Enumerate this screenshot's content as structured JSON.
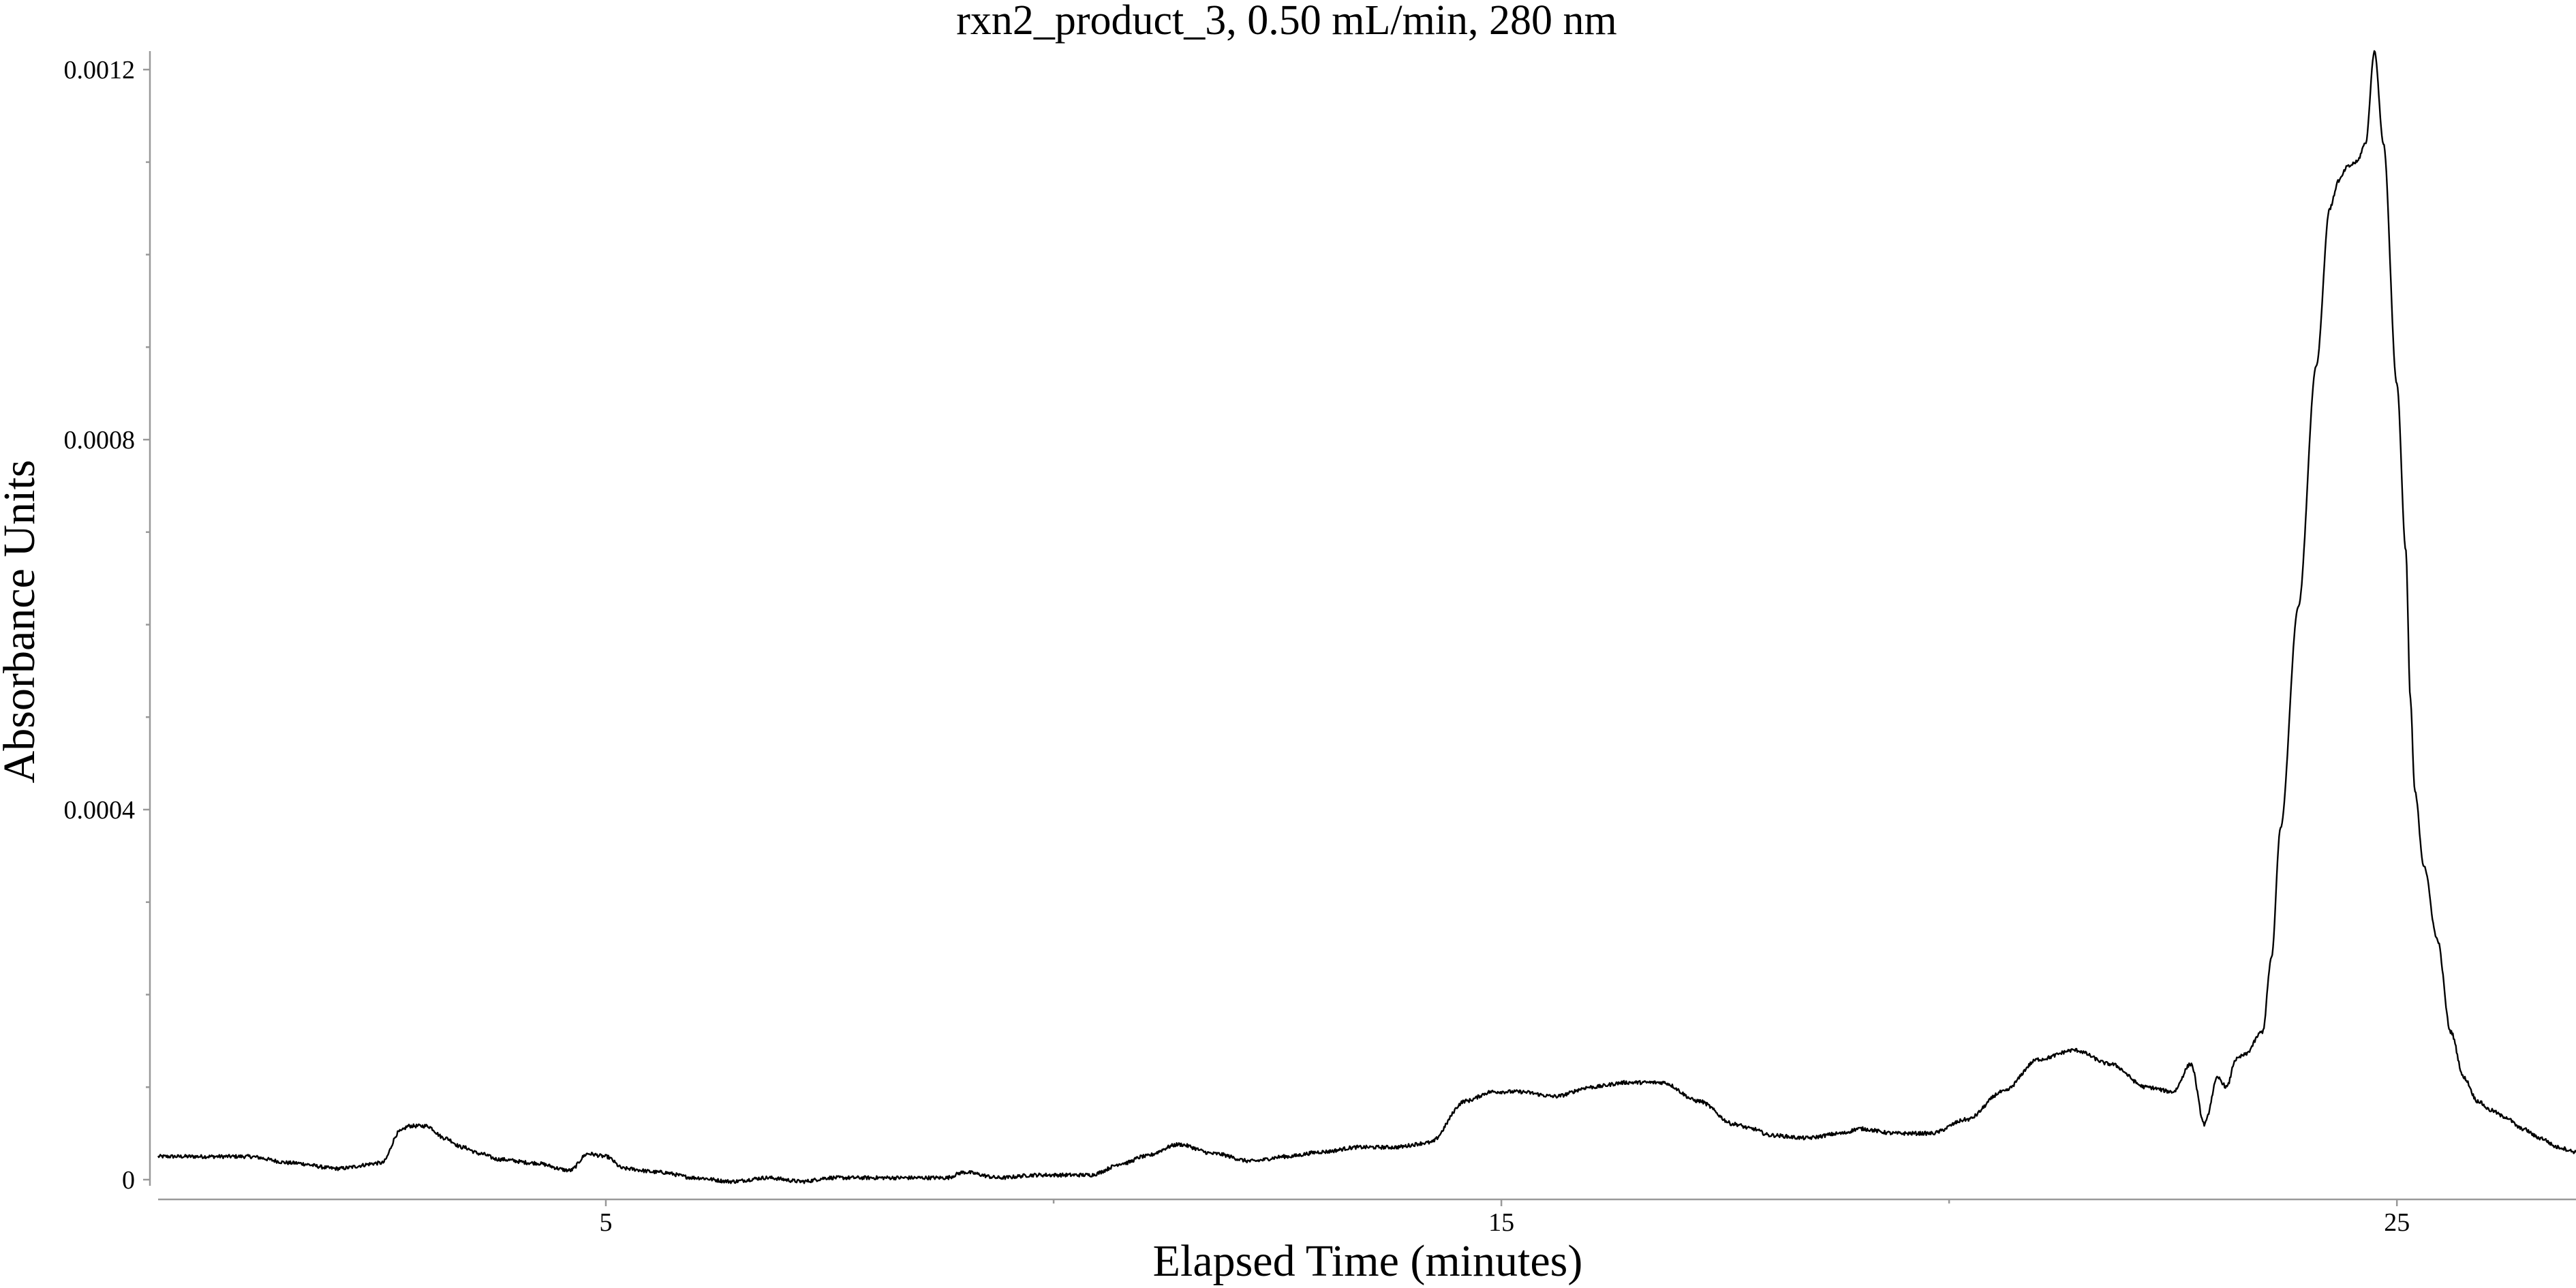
{
  "chart_data": {
    "type": "line",
    "title": "rxn2_product_3, 0.50 mL/min, 280 nm",
    "xlabel": "Elapsed Time (minutes)",
    "ylabel": "Absorbance Units",
    "xlim": [
      0,
      27
    ],
    "ylim": [
      -2e-05,
      0.00122
    ],
    "x_ticks": [
      5,
      15,
      25
    ],
    "x_tick_labels": [
      "5",
      "15",
      "25"
    ],
    "x_minor_ticks": [
      10,
      20
    ],
    "y_ticks": [
      0,
      0.0004,
      0.0008,
      0.0012
    ],
    "y_tick_labels": [
      "0",
      "0.0004",
      "0.0008",
      "0.0012"
    ],
    "grid": false,
    "legend": "none",
    "series": [
      {
        "color": "#000000",
        "x": [
          0.0,
          1.0,
          1.5,
          2.0,
          2.5,
          2.7,
          2.8,
          3.0,
          3.2,
          3.4,
          3.6,
          3.8,
          4.2,
          4.6,
          4.8,
          5.0,
          5.2,
          5.6,
          6.0,
          6.4,
          6.8,
          7.2,
          7.5,
          7.8,
          8.0,
          8.4,
          8.8,
          9.0,
          9.4,
          9.8,
          10.4,
          10.8,
          11.0,
          11.4,
          11.8,
          12.2,
          12.6,
          13.0,
          13.4,
          13.8,
          14.2,
          14.6,
          14.9,
          15.2,
          15.6,
          16.0,
          16.4,
          16.8,
          17.2,
          17.6,
          17.8,
          18.0,
          18.4,
          18.8,
          19.0,
          19.4,
          19.8,
          20.2,
          20.6,
          21.0,
          21.4,
          21.8,
          22.2,
          22.5,
          22.7,
          22.85,
          23.0,
          23.1,
          23.2,
          23.3,
          23.5,
          23.6,
          23.7,
          23.9,
          24.1,
          24.25,
          24.35,
          24.45,
          24.55,
          24.65,
          24.75,
          24.85,
          25.0,
          25.1,
          25.15,
          25.2,
          25.3,
          25.45,
          25.6,
          25.75,
          25.9,
          26.05,
          26.2,
          26.4,
          26.6,
          26.8,
          27.0
        ],
        "y": [
          2.5e-05,
          2.5e-05,
          1.8e-05,
          1.2e-05,
          1.8e-05,
          5.2e-05,
          5.8e-05,
          5.8e-05,
          4.5e-05,
          3.5e-05,
          2.8e-05,
          2.2e-05,
          1.8e-05,
          1e-05,
          2.8e-05,
          2.5e-05,
          1.2e-05,
          8e-06,
          2e-06,
          -2e-06,
          2e-06,
          -2e-06,
          2e-06,
          2e-06,
          2e-06,
          2e-06,
          2e-06,
          8e-06,
          2e-06,
          5e-06,
          5e-06,
          1.8e-05,
          2.5e-05,
          3.8e-05,
          2.8e-05,
          2e-05,
          2.5e-05,
          3e-05,
          3.5e-05,
          3.5e-05,
          4e-05,
          8.5e-05,
          9.5e-05,
          9.5e-05,
          9e-05,
          0.0001,
          0.000105,
          0.000105,
          8.5e-05,
          6e-05,
          5.5e-05,
          4.8e-05,
          4.5e-05,
          5e-05,
          5.5e-05,
          5e-05,
          5e-05,
          6.5e-05,
          9.5e-05,
          0.00013,
          0.00014,
          0.000125,
          0.0001,
          9.5e-05,
          0.000125,
          6e-05,
          0.00011,
          0.0001,
          0.00013,
          0.000135,
          0.00016,
          0.00024,
          0.00038,
          0.00062,
          0.00088,
          0.00105,
          0.00108,
          0.001095,
          0.0011,
          0.00112,
          0.00122,
          0.00112,
          0.00086,
          0.00068,
          0.00052,
          0.00042,
          0.00034,
          0.00026,
          0.00016,
          0.00011,
          8.5e-05,
          7.5e-05,
          6.8e-05,
          5.5e-05,
          4.5e-05,
          3.5e-05,
          3e-05
        ]
      }
    ]
  }
}
